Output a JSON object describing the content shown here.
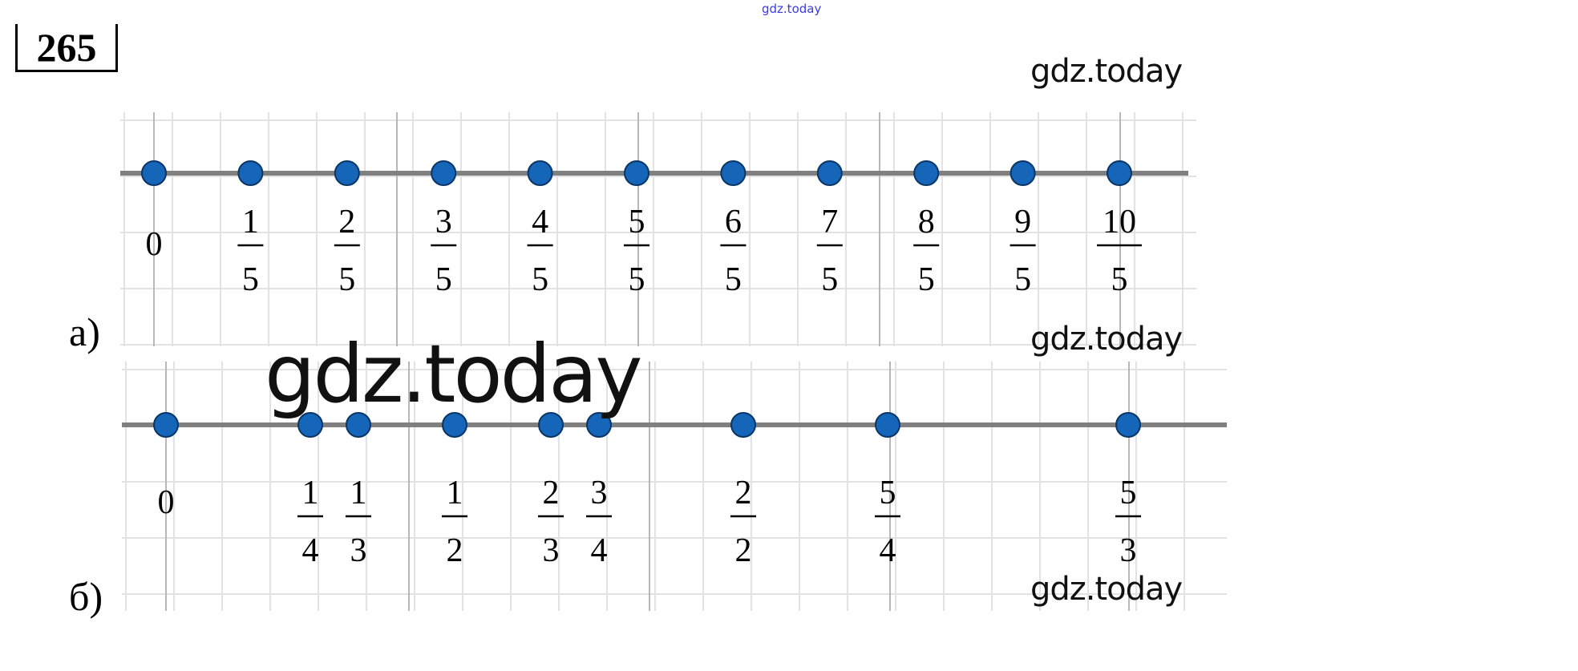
{
  "header": {
    "top_watermark": "gdz.today",
    "exercise_number": "265"
  },
  "watermarks": [
    "gdz.today",
    "gdz.today",
    "gdz.today",
    "gdz.today"
  ],
  "colors": {
    "point": "#1565b8",
    "axis": "#808080",
    "grid": "#e2e2e2",
    "grid_major": "#b8b8b8"
  },
  "chart_data": [
    {
      "type": "scatter",
      "part_label": "а)",
      "axis": "number line",
      "points": [
        {
          "label": "0",
          "value": 0
        },
        {
          "num": "1",
          "den": "5",
          "value": 0.2
        },
        {
          "num": "2",
          "den": "5",
          "value": 0.4
        },
        {
          "num": "3",
          "den": "5",
          "value": 0.6
        },
        {
          "num": "4",
          "den": "5",
          "value": 0.8
        },
        {
          "num": "5",
          "den": "5",
          "value": 1
        },
        {
          "num": "6",
          "den": "5",
          "value": 1.2
        },
        {
          "num": "7",
          "den": "5",
          "value": 1.4
        },
        {
          "num": "8",
          "den": "5",
          "value": 1.6
        },
        {
          "num": "9",
          "den": "5",
          "value": 1.8
        },
        {
          "num": "10",
          "den": "5",
          "value": 2
        }
      ]
    },
    {
      "type": "scatter",
      "part_label": "б)",
      "axis": "number line",
      "points": [
        {
          "label": "0",
          "value": 0
        },
        {
          "num": "1",
          "den": "4",
          "value": 0.25
        },
        {
          "num": "1",
          "den": "3",
          "value": 0.3333
        },
        {
          "num": "1",
          "den": "2",
          "value": 0.5
        },
        {
          "num": "2",
          "den": "3",
          "value": 0.6667
        },
        {
          "num": "3",
          "den": "4",
          "value": 0.75
        },
        {
          "num": "2",
          "den": "2",
          "value": 1
        },
        {
          "num": "5",
          "den": "4",
          "value": 1.25
        },
        {
          "num": "5",
          "den": "3",
          "value": 1.6667
        }
      ]
    }
  ]
}
